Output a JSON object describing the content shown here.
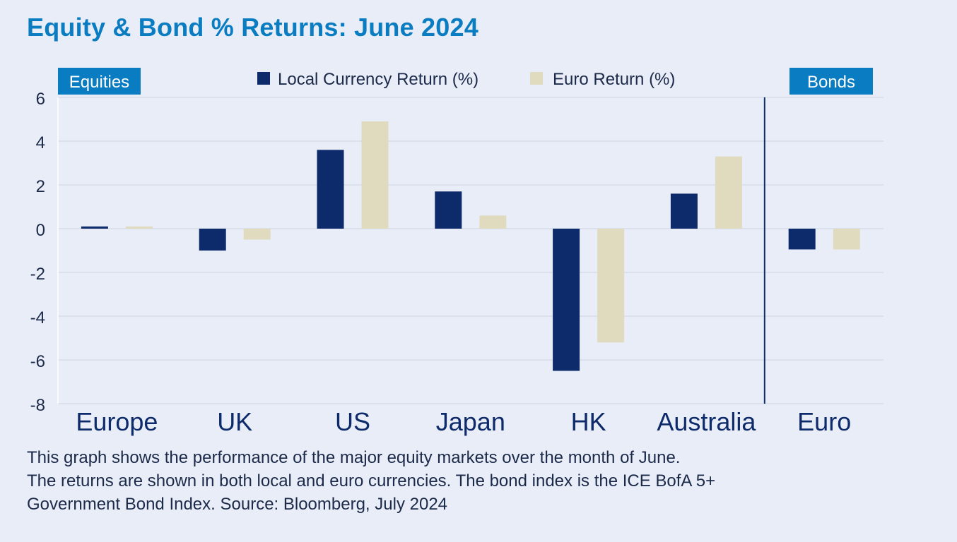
{
  "title": "Equity & Bond % Returns: June 2024",
  "colors": {
    "title": "#0a7cc1",
    "local": "#0d2a6b",
    "euro": "#e0dbbf",
    "panel_label_bg": "#0a7cc1",
    "grid": "#d6dbe8",
    "text": "#1c2a4a"
  },
  "chart_data": {
    "type": "bar",
    "categories": [
      "Europe",
      "UK",
      "US",
      "Japan",
      "HK",
      "Australia",
      "Euro"
    ],
    "series": [
      {
        "name": "Local Currency Return (%)",
        "values": [
          0.1,
          -1.0,
          3.6,
          1.7,
          -6.5,
          1.6,
          -0.95
        ]
      },
      {
        "name": "Euro Return (%)",
        "values": [
          0.1,
          -0.5,
          4.9,
          0.6,
          -5.2,
          3.3,
          -0.95
        ]
      }
    ],
    "yticks": [
      "6",
      "4",
      "2",
      "0",
      "-2",
      "-4",
      "-6",
      "-8"
    ],
    "ylim": [
      -8,
      6
    ],
    "grid": true,
    "legend_placement": "top-center",
    "panel_labels": {
      "equities": "Equities",
      "bonds": "Bonds"
    }
  },
  "caption": [
    "This graph shows the performance of the major equity markets over the month of June.",
    "The returns are shown in both local and euro currencies. The bond index is the ICE BofA 5+",
    "Government Bond Index. Source: Bloomberg, July 2024"
  ]
}
